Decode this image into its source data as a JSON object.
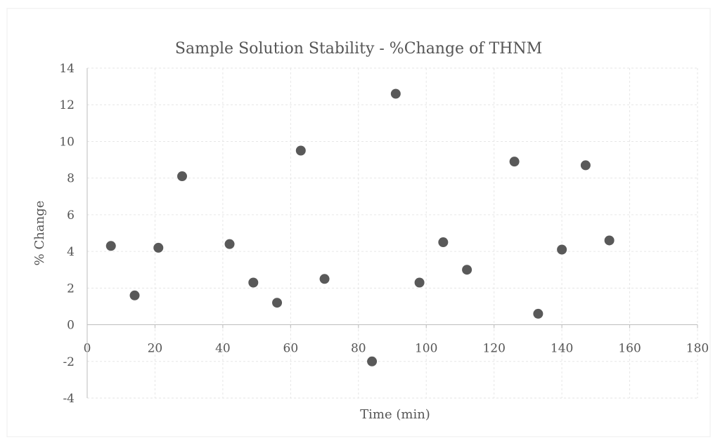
{
  "chart_data": {
    "type": "scatter",
    "title": "Sample Solution Stability - %Change of THNM",
    "xlabel": "Time (min)",
    "ylabel": "% Change",
    "xlim": [
      0,
      180
    ],
    "ylim": [
      -4,
      14
    ],
    "x_ticks": [
      0,
      20,
      40,
      60,
      80,
      100,
      120,
      140,
      160,
      180
    ],
    "y_ticks": [
      -4,
      -2,
      0,
      2,
      4,
      6,
      8,
      10,
      12,
      14
    ],
    "grid": true,
    "legend": "none",
    "marker_color": "#595959",
    "series": [
      {
        "x": [
          7,
          14,
          21,
          28,
          42,
          49,
          56,
          63,
          70,
          84,
          91,
          98,
          105,
          112,
          126,
          133,
          140,
          147,
          154
        ],
        "y": [
          4.3,
          1.6,
          4.2,
          8.1,
          4.4,
          2.3,
          1.2,
          9.5,
          2.5,
          -2.0,
          12.6,
          2.3,
          4.5,
          3.0,
          8.9,
          0.6,
          4.1,
          8.7,
          4.6
        ]
      }
    ]
  }
}
